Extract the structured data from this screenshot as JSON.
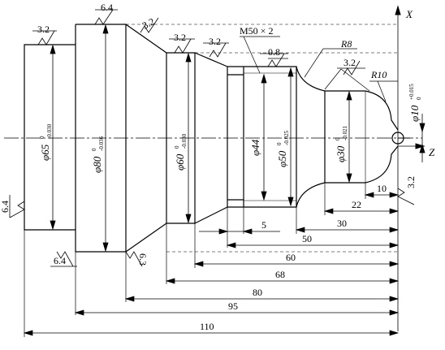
{
  "drawing": {
    "axis_x_label": "X",
    "axis_z_label": "Z",
    "thread_label": "M50 × 2",
    "radius_labels": [
      "R8",
      "R10"
    ],
    "roughness": [
      "6.4",
      "3.2",
      "3.2",
      "3.2",
      "3.2",
      "0.8",
      "3.2",
      "3.2",
      "6.4",
      "6.4",
      "6.3"
    ],
    "diameters": [
      {
        "main": "φ65",
        "sup": "0",
        "sub": "-0.030"
      },
      {
        "main": "φ80",
        "sup": "0",
        "sub": "-0.036"
      },
      {
        "main": "φ60",
        "sup": "0",
        "sub": "-0.030"
      },
      {
        "main": "φ44",
        "sup": "",
        "sub": ""
      },
      {
        "main": "φ50",
        "sup": "0",
        "sub": "-0.025"
      },
      {
        "main": "φ30",
        "sup": "0",
        "sub": "-0.021"
      },
      {
        "main": "φ10",
        "sup": "+0.015",
        "sub": "0"
      }
    ],
    "lengths": [
      "10",
      "22",
      "30",
      "5",
      "50",
      "60",
      "68",
      "80",
      "95",
      "110"
    ]
  }
}
